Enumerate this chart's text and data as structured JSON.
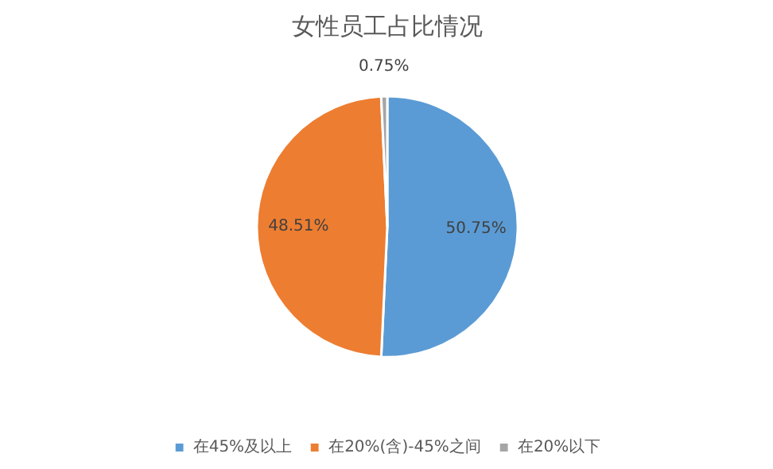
{
  "chart_data": {
    "type": "pie",
    "title": "女性员工占比情况",
    "categories": [
      "在45%及以上",
      "在20%(含)-45%之间",
      "在20%以下"
    ],
    "values": [
      50.75,
      48.51,
      0.75
    ],
    "colors": [
      "#5b9bd5",
      "#ed7d31",
      "#a5a5a5"
    ],
    "value_labels": [
      "50.75%",
      "48.51%",
      "0.75%"
    ],
    "legend": "bottom"
  }
}
